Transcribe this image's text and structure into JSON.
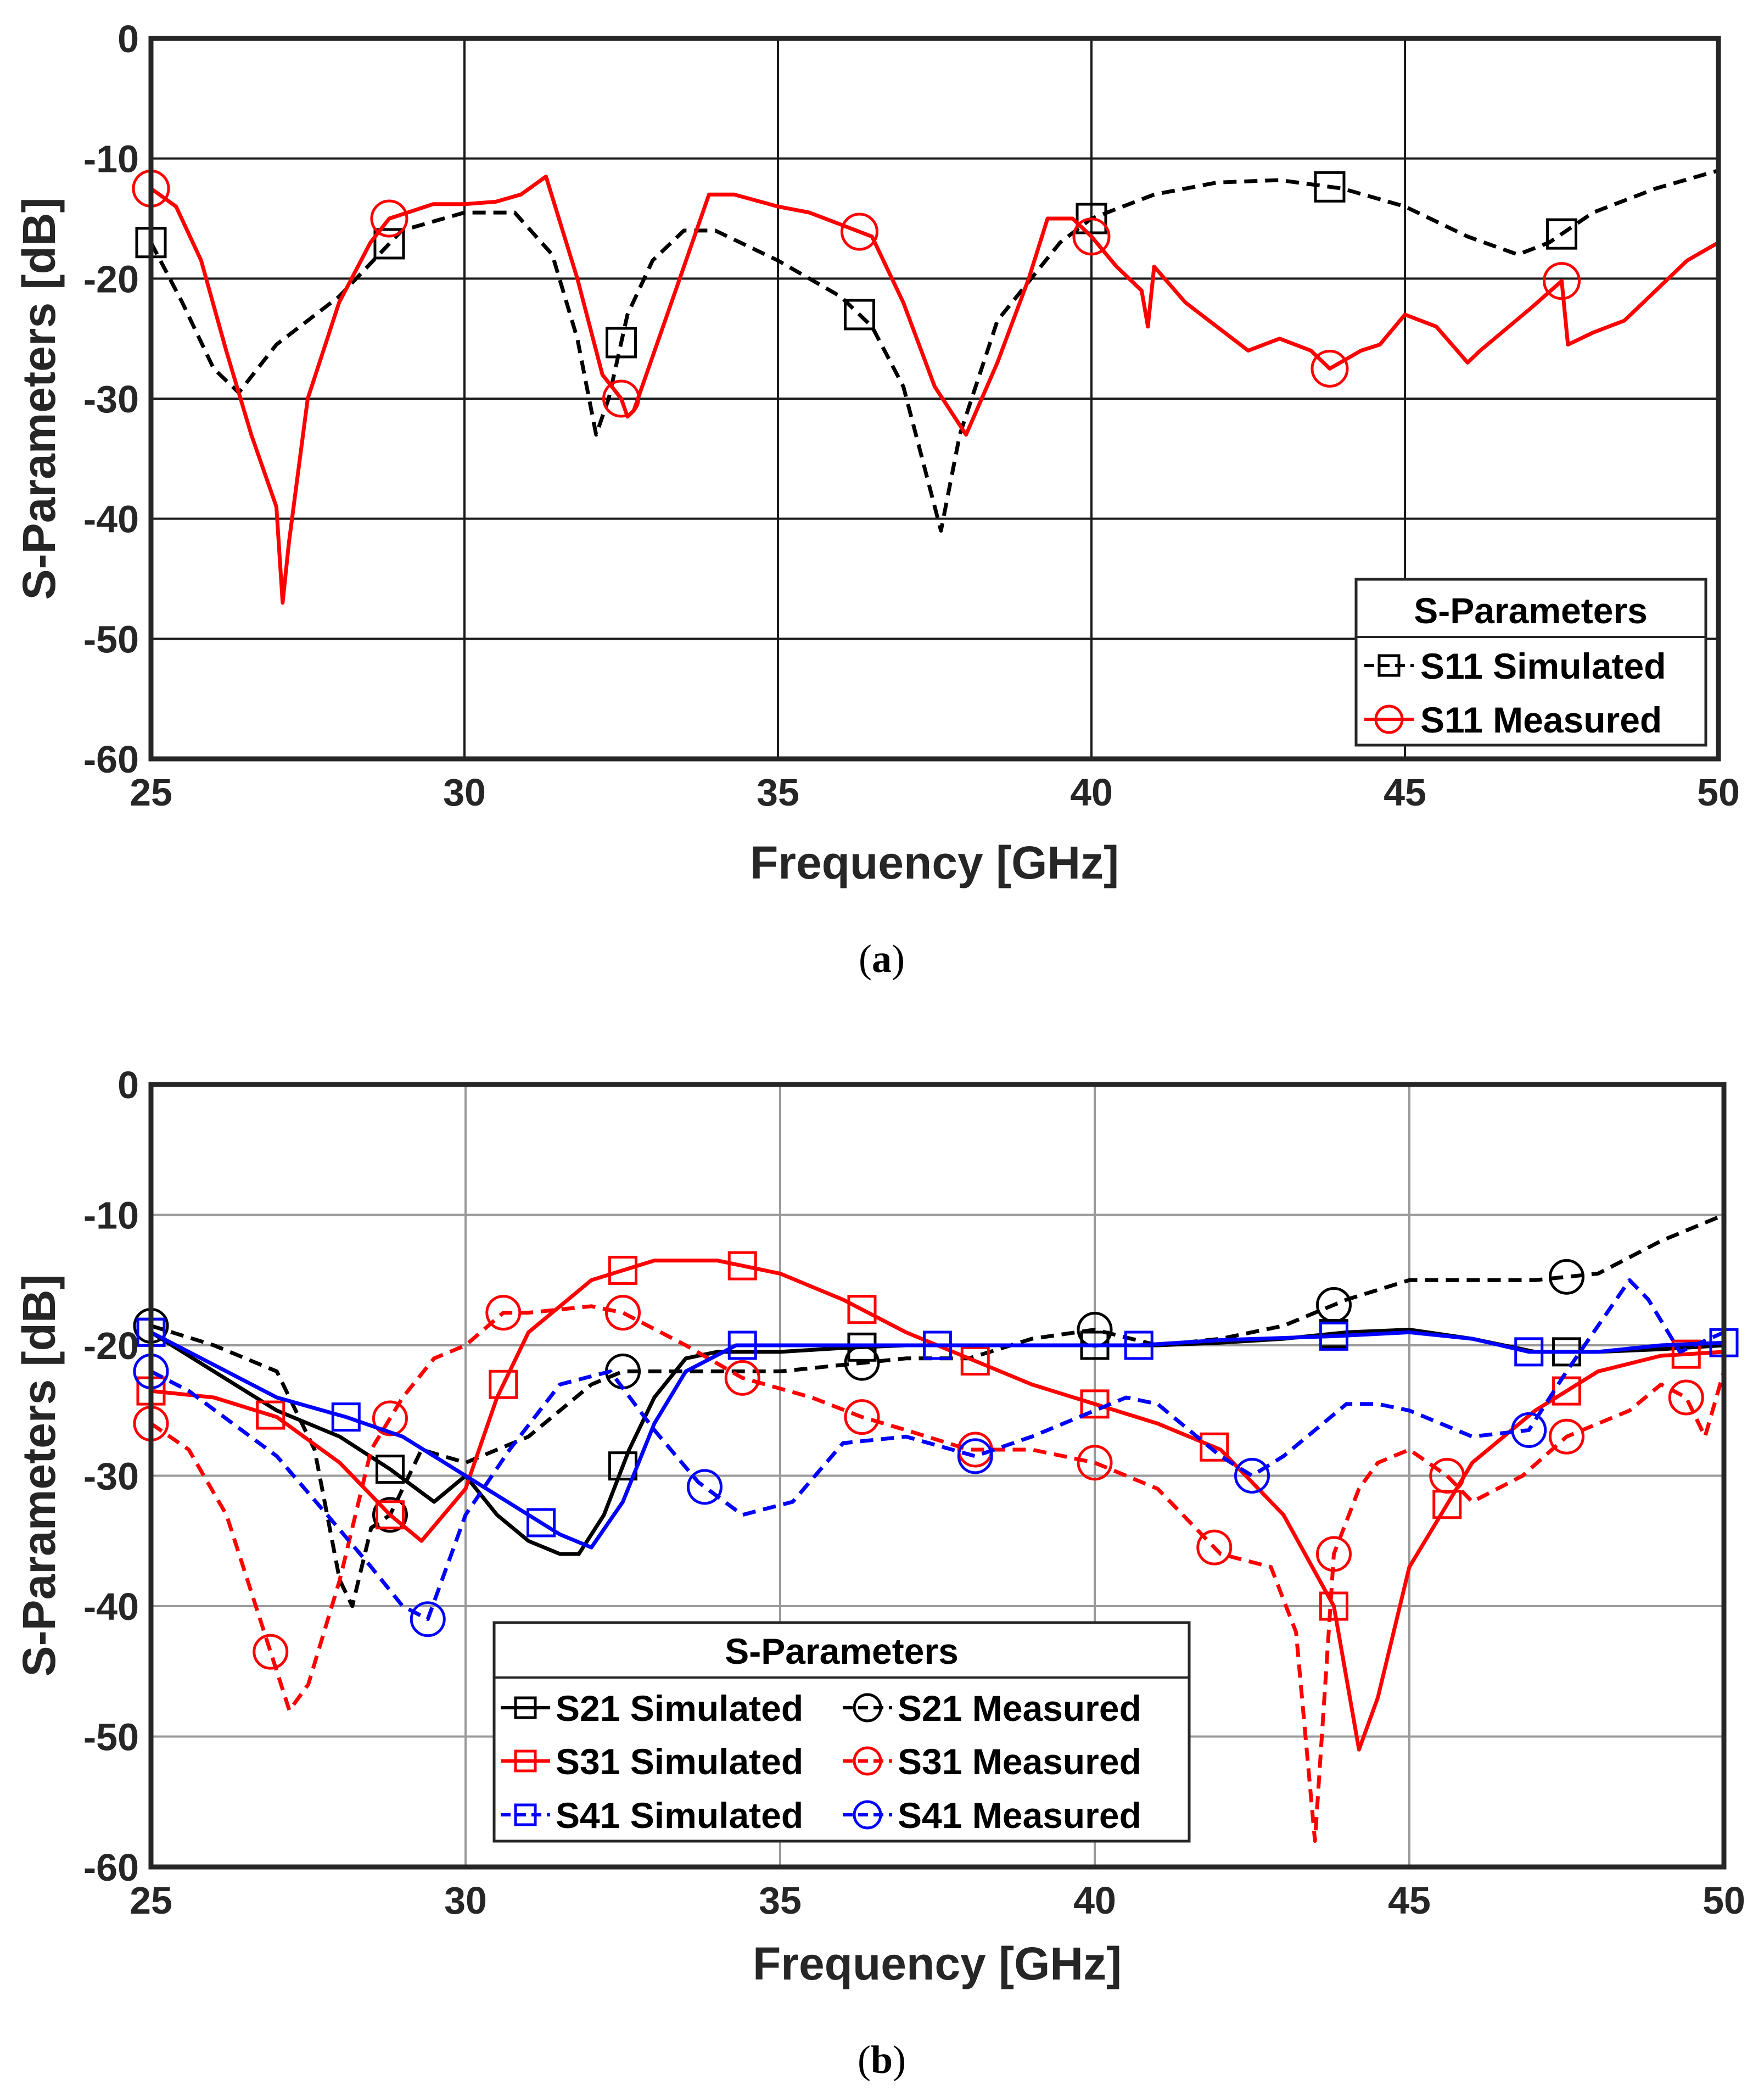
{
  "chart_data": [
    {
      "id": "a",
      "type": "line",
      "caption_letter": "a",
      "xlabel": "Frequency [GHz]",
      "ylabel": "S-Parameters [dB]",
      "xlim": [
        25,
        50
      ],
      "ylim": [
        -60,
        0
      ],
      "xticks": [
        "25",
        "30",
        "35",
        "40",
        "45",
        "50"
      ],
      "yticks": [
        "0",
        "-10",
        "-20",
        "-30",
        "-40",
        "-50",
        "-60"
      ],
      "grid": true,
      "legend": {
        "title": "S-Parameters",
        "location": "bottom-right"
      },
      "series": [
        {
          "name": "S11 Simulated",
          "color": "#000000",
          "dash": "dashed",
          "marker": "square",
          "x": [
            25,
            25.5,
            26,
            26.4,
            27,
            28,
            29,
            30,
            30.8,
            31.4,
            31.8,
            32.1,
            32.3,
            32.6,
            33,
            33.5,
            34,
            35,
            36,
            36.5,
            37,
            37.3,
            37.6,
            37.9,
            38.5,
            39.5,
            40,
            41,
            42,
            43,
            44,
            45,
            46,
            46.8,
            47.3,
            48,
            49,
            50
          ],
          "y": [
            -17,
            -22,
            -27.5,
            -29.5,
            -25.5,
            -21.5,
            -16,
            -14.5,
            -14.5,
            -18,
            -25,
            -33,
            -30,
            -23,
            -18.5,
            -16,
            -16,
            -18.5,
            -21.5,
            -24,
            -29,
            -35,
            -41,
            -33,
            -23.5,
            -17,
            -15,
            -13,
            -12,
            -11.8,
            -12.5,
            -14,
            -16.5,
            -18,
            -17,
            -14.5,
            -12.5,
            -11
          ],
          "marker_x": [
            25,
            28.8,
            32.5,
            36.3,
            40,
            43.8,
            47.5
          ]
        },
        {
          "name": "S11 Measured",
          "color": "#ff0000",
          "dash": "solid",
          "marker": "circle",
          "x": [
            25,
            25.4,
            25.8,
            26.2,
            26.6,
            27,
            27.1,
            27.2,
            27.5,
            28,
            28.5,
            28.8,
            29.5,
            30,
            30.5,
            30.9,
            31.3,
            31.8,
            32.2,
            32.5,
            32.6,
            32.7,
            33.3,
            33.9,
            34.3,
            35,
            35.5,
            36,
            36.5,
            37,
            37.5,
            38,
            38.5,
            39,
            39.3,
            39.7,
            40,
            40.4,
            40.8,
            40.9,
            41,
            41.5,
            42,
            42.5,
            43,
            43.5,
            43.8,
            44.3,
            44.6,
            45,
            45.5,
            46,
            46.2,
            47,
            47.5,
            47.6,
            48,
            48.5,
            49,
            49.5,
            50
          ],
          "y": [
            -12.5,
            -14,
            -18.5,
            -26,
            -33,
            -39,
            -47,
            -42,
            -30,
            -22,
            -17,
            -15,
            -13.8,
            -13.8,
            -13.6,
            -13,
            -11.5,
            -20,
            -28,
            -30,
            -31.5,
            -31,
            -22,
            -13,
            -13,
            -14,
            -14.5,
            -15.5,
            -16.5,
            -22,
            -29,
            -33,
            -27,
            -20,
            -15,
            -15,
            -16.5,
            -19,
            -21,
            -24,
            -19,
            -22,
            -24,
            -26,
            -25,
            -26,
            -27.5,
            -26,
            -25.5,
            -23,
            -24,
            -27,
            -26,
            -22.5,
            -20.2,
            -25.5,
            -24.5,
            -23.5,
            -21,
            -18.5,
            -17
          ],
          "marker_x": [
            25,
            28.8,
            32.5,
            36.3,
            40,
            43.8,
            47.5
          ]
        }
      ]
    },
    {
      "id": "b",
      "type": "line",
      "caption_letter": "b",
      "xlabel": "Frequency [GHz]",
      "ylabel": "S-Parameters [dB]",
      "xlim": [
        25,
        50
      ],
      "ylim": [
        -60,
        0
      ],
      "xticks": [
        "25",
        "30",
        "35",
        "40",
        "45",
        "50"
      ],
      "yticks": [
        "0",
        "-10",
        "-20",
        "-30",
        "-40",
        "-50",
        "-60"
      ],
      "grid": true,
      "legend": {
        "title": "S-Parameters",
        "location": "bottom-center"
      },
      "series": [
        {
          "name": "S21 Simulated",
          "color": "#000000",
          "dash": "solid",
          "marker": "square",
          "x": [
            25,
            26,
            27,
            28,
            28.8,
            29.5,
            30,
            30.5,
            31,
            31.5,
            31.8,
            32.2,
            32.6,
            33,
            33.5,
            34,
            35,
            36,
            37,
            38,
            39,
            40,
            41,
            42,
            43,
            44,
            45,
            46,
            47,
            48,
            49,
            50
          ],
          "y": [
            -19,
            -22,
            -25,
            -27,
            -29.5,
            -32,
            -30,
            -33,
            -35,
            -36,
            -36,
            -33,
            -28,
            -24,
            -21,
            -20.5,
            -20.5,
            -20.2,
            -20,
            -20,
            -20,
            -20,
            -20,
            -19.8,
            -19.5,
            -19,
            -18.8,
            -19.5,
            -20.5,
            -20.5,
            -20.3,
            -20
          ],
          "marker_x": [
            25,
            28.8,
            32.5,
            36.3,
            40,
            43.8,
            47.5
          ]
        },
        {
          "name": "S21 Measured",
          "color": "#000000",
          "dash": "dashed",
          "marker": "circle",
          "x": [
            25,
            26,
            27,
            27.6,
            28,
            28.2,
            28.5,
            28.8,
            29.3,
            30,
            31,
            32,
            32.5,
            33,
            34,
            35,
            36,
            37,
            38,
            39,
            40,
            41,
            42,
            43,
            44,
            45,
            46,
            47,
            48,
            49,
            50
          ],
          "y": [
            -18.5,
            -20,
            -22,
            -28,
            -38,
            -40,
            -34,
            -33,
            -28,
            -29,
            -27,
            -23,
            -22,
            -22,
            -22,
            -22,
            -21.5,
            -21,
            -21,
            -19.5,
            -18.8,
            -20,
            -19.5,
            -18.5,
            -16.5,
            -15,
            -15,
            -15,
            -14.5,
            -12,
            -10
          ],
          "marker_x": [
            25,
            28.8,
            32.5,
            36.3,
            40,
            43.8,
            47.5
          ]
        },
        {
          "name": "S31 Simulated",
          "color": "#ff0000",
          "dash": "solid",
          "marker": "square",
          "x": [
            25,
            26,
            27,
            28,
            28.8,
            29.3,
            30,
            30.5,
            31,
            32,
            33,
            34,
            35,
            36,
            37,
            38,
            39,
            40,
            41,
            42,
            43,
            43.8,
            44.2,
            44.5,
            45,
            46,
            47,
            48,
            49,
            50
          ],
          "y": [
            -23.5,
            -24,
            -25.5,
            -29,
            -33,
            -35,
            -31,
            -24,
            -19,
            -15,
            -13.5,
            -13.5,
            -14.5,
            -16.5,
            -19,
            -21,
            -23,
            -24.5,
            -26,
            -28,
            -33,
            -40,
            -51,
            -47,
            -37,
            -29,
            -25,
            -22,
            -20.8,
            -20.5
          ],
          "marker_x": [
            25,
            26.9,
            28.8,
            30.6,
            32.5,
            34.4,
            36.3,
            38.1,
            40,
            41.9,
            43.8,
            45.6,
            47.5,
            49.4
          ]
        },
        {
          "name": "S31 Measured",
          "color": "#ff0000",
          "dash": "dashed",
          "marker": "circle",
          "x": [
            25,
            25.6,
            26.2,
            26.8,
            27.2,
            27.5,
            28,
            28.5,
            29,
            29.5,
            30,
            30.6,
            31,
            32,
            32.5,
            33.5,
            34.4,
            35.5,
            36.3,
            37,
            38,
            39,
            40,
            41,
            42,
            42.8,
            43.2,
            43.5,
            43.8,
            44.2,
            44.5,
            45,
            45.6,
            46,
            46.8,
            47.5,
            48,
            48.5,
            49,
            49.4,
            49.7,
            50
          ],
          "y": [
            -26,
            -28,
            -33,
            -42,
            -48,
            -46,
            -38,
            -28,
            -24,
            -21,
            -20,
            -17.5,
            -17.5,
            -17,
            -17.5,
            -20,
            -22.5,
            -24,
            -25.5,
            -26.5,
            -28,
            -28,
            -29,
            -31,
            -36,
            -37,
            -42,
            -58,
            -36,
            -31,
            -29,
            -28,
            -30,
            -32,
            -30,
            -27,
            -26,
            -25,
            -23,
            -24,
            -27,
            -22
          ],
          "marker_x": [
            25,
            26.9,
            28.8,
            30.6,
            32.5,
            34.4,
            36.3,
            38.1,
            40,
            41.9,
            43.8,
            45.6,
            47.5,
            49.4
          ]
        },
        {
          "name": "S41 Simulated",
          "color": "#0000ff",
          "dash": "solid",
          "marker": "square",
          "x": [
            25,
            26,
            27,
            28.1,
            29,
            30,
            31,
            31.5,
            32,
            32.5,
            33,
            33.5,
            34.3,
            35,
            36,
            37.5,
            39,
            40.7,
            42,
            43.8,
            45,
            46,
            46.9,
            48,
            49,
            50
          ],
          "y": [
            -19,
            -21.5,
            -24,
            -25.5,
            -27,
            -30,
            -33,
            -34.5,
            -35.5,
            -32,
            -26,
            -22,
            -20,
            -20,
            -20,
            -20,
            -20,
            -20,
            -19.6,
            -19.3,
            -19,
            -19.5,
            -20.5,
            -20.5,
            -20,
            -19.8
          ],
          "marker_x": [
            25,
            28.1,
            31.2,
            34.4,
            37.5,
            40.7,
            43.8,
            46.9,
            50
          ]
        },
        {
          "name": "S41 Measured",
          "color": "#0000ff",
          "dash": "dashed",
          "marker": "circle",
          "x": [
            25,
            25.6,
            26.3,
            27,
            27.8,
            28.5,
            29,
            29.4,
            30,
            30.7,
            31.5,
            32.3,
            33,
            33.7,
            34.4,
            35.2,
            36,
            37,
            38.1,
            39,
            40,
            40.5,
            41,
            42,
            42.5,
            43,
            44,
            44.5,
            45,
            45.5,
            46,
            46.9,
            47.5,
            48.5,
            48.8,
            49.3,
            50
          ],
          "y": [
            -22,
            -23.5,
            -26,
            -28.5,
            -33,
            -37,
            -40,
            -41,
            -33,
            -28,
            -23,
            -22,
            -26.5,
            -30.5,
            -33,
            -32,
            -27.5,
            -27,
            -28.5,
            -27,
            -25,
            -24,
            -24.5,
            -28.5,
            -30,
            -28.5,
            -24.5,
            -24.5,
            -25,
            -26,
            -27,
            -26.5,
            -22,
            -15,
            -16.5,
            -20.5,
            -19
          ],
          "marker_x": [
            25,
            29.4,
            33.8,
            38.1,
            42.5,
            46.9
          ]
        }
      ]
    }
  ]
}
